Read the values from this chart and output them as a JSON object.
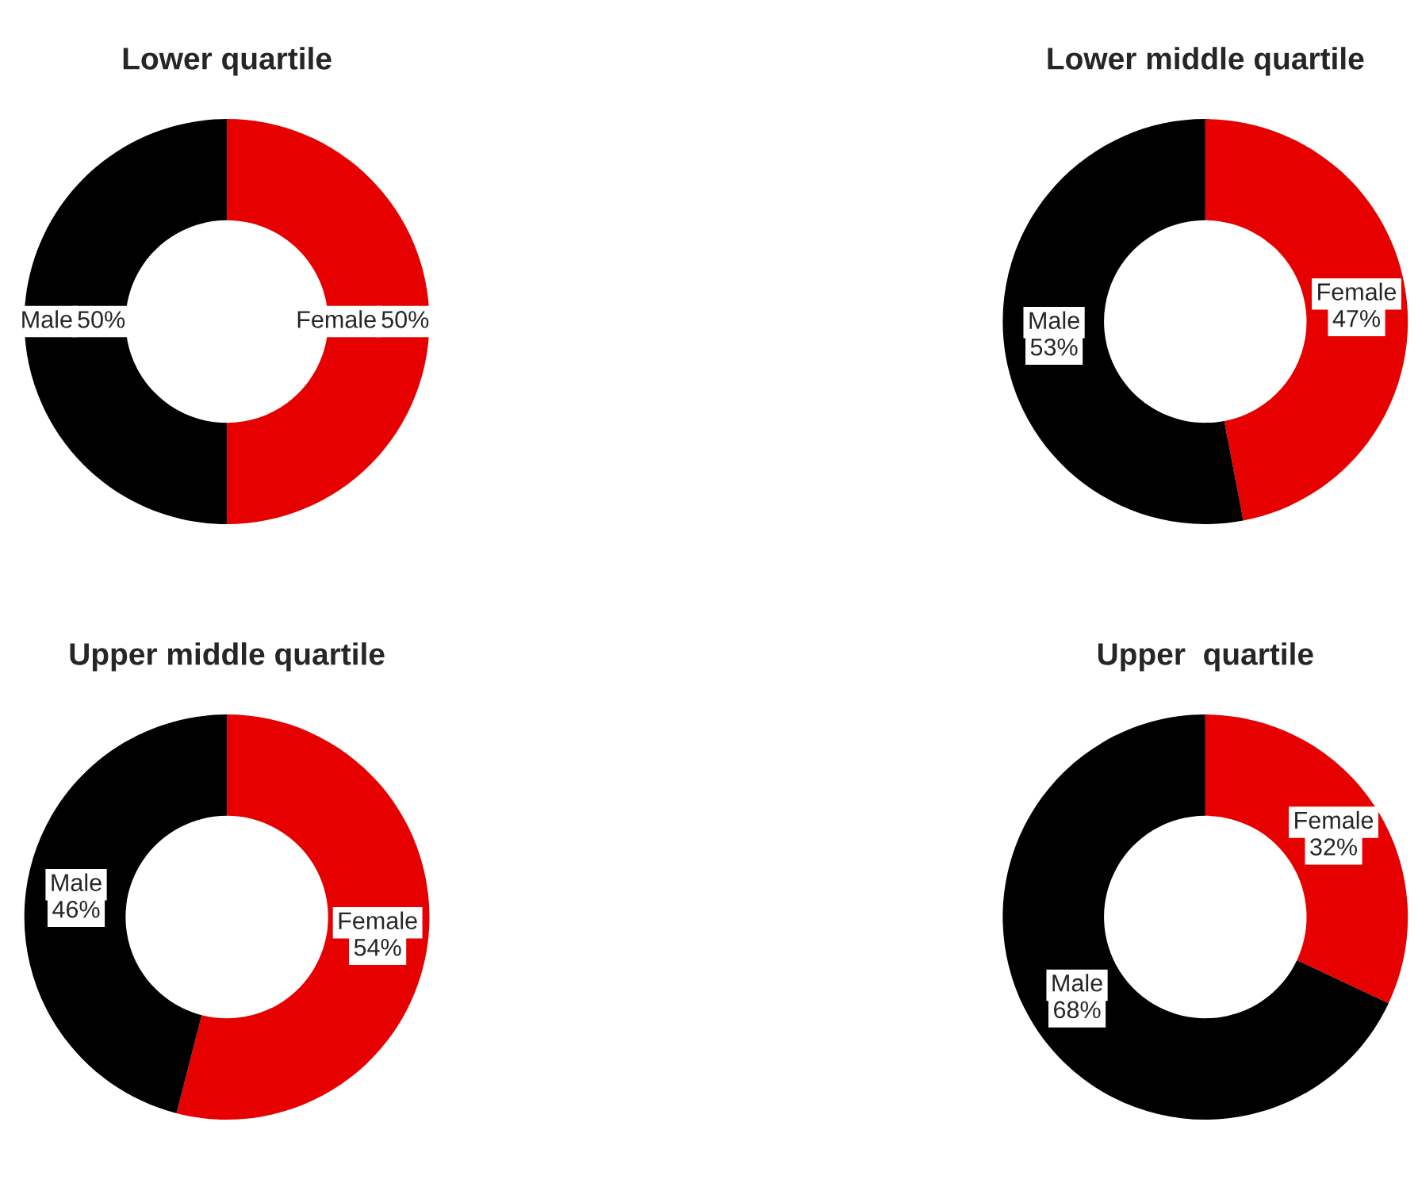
{
  "chart_data": [
    {
      "type": "donut",
      "title": "Lower quartile",
      "categories": [
        "Female",
        "Male"
      ],
      "values": [
        50,
        50
      ],
      "colors": [
        "#e60000",
        "#000000"
      ],
      "value_labels": [
        "50%",
        "50%"
      ]
    },
    {
      "type": "donut",
      "title": "Lower middle quartile",
      "categories": [
        "Female",
        "Male"
      ],
      "values": [
        47,
        53
      ],
      "colors": [
        "#e60000",
        "#000000"
      ],
      "value_labels": [
        "47%",
        "53%"
      ]
    },
    {
      "type": "donut",
      "title": "Upper middle quartile",
      "categories": [
        "Female",
        "Male"
      ],
      "values": [
        54,
        46
      ],
      "colors": [
        "#e60000",
        "#000000"
      ],
      "value_labels": [
        "54%",
        "46%"
      ]
    },
    {
      "type": "donut",
      "title": "Upper  quartile",
      "categories": [
        "Female",
        "Male"
      ],
      "values": [
        32,
        68
      ],
      "colors": [
        "#e60000",
        "#000000"
      ],
      "value_labels": [
        "32%",
        "68%"
      ]
    }
  ]
}
